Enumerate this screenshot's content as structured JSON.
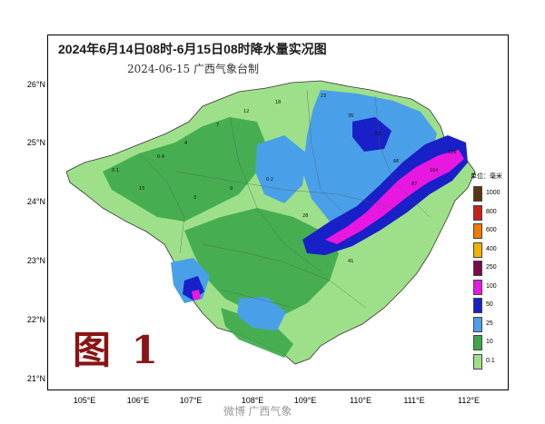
{
  "title": "2024年6月14日08时-6月15日08时降水量实况图",
  "subtitle": "2024-06-15  广西气象台制",
  "figure_label": "图 1",
  "watermark": "微博 广西气象",
  "lat_ticks": [
    "26°N",
    "25°N",
    "24°N",
    "23°N",
    "22°N",
    "21°N"
  ],
  "lon_ticks": [
    "105°E",
    "106°E",
    "107°E",
    "108°E",
    "109°E",
    "110°E",
    "111°E",
    "112°E"
  ],
  "legend": {
    "unit": "单位：毫米",
    "items": [
      {
        "label": "1000",
        "color": "#5a3510"
      },
      {
        "label": "800",
        "color": "#c62020"
      },
      {
        "label": "600",
        "color": "#f07a00"
      },
      {
        "label": "400",
        "color": "#f2b000"
      },
      {
        "label": "250",
        "color": "#7a0a4a"
      },
      {
        "label": "100",
        "color": "#e818e0"
      },
      {
        "label": "50",
        "color": "#1820c8"
      },
      {
        "label": "25",
        "color": "#4aa0e8"
      },
      {
        "label": "10",
        "color": "#3ca84a"
      },
      {
        "label": "0.1",
        "color": "#9ee08a"
      }
    ]
  },
  "colors": {
    "light": "#9ee08a",
    "green": "#3ca84a",
    "lightblue": "#4aa0e8",
    "blue": "#1820c8",
    "magenta": "#e818e0"
  },
  "station_values": [
    "0.1",
    "0.4",
    "4",
    "7",
    "12",
    "18",
    "23",
    "35",
    "52",
    "66",
    "87",
    "104",
    "126",
    "3",
    "9",
    "0.2",
    "15",
    "28",
    "41"
  ]
}
